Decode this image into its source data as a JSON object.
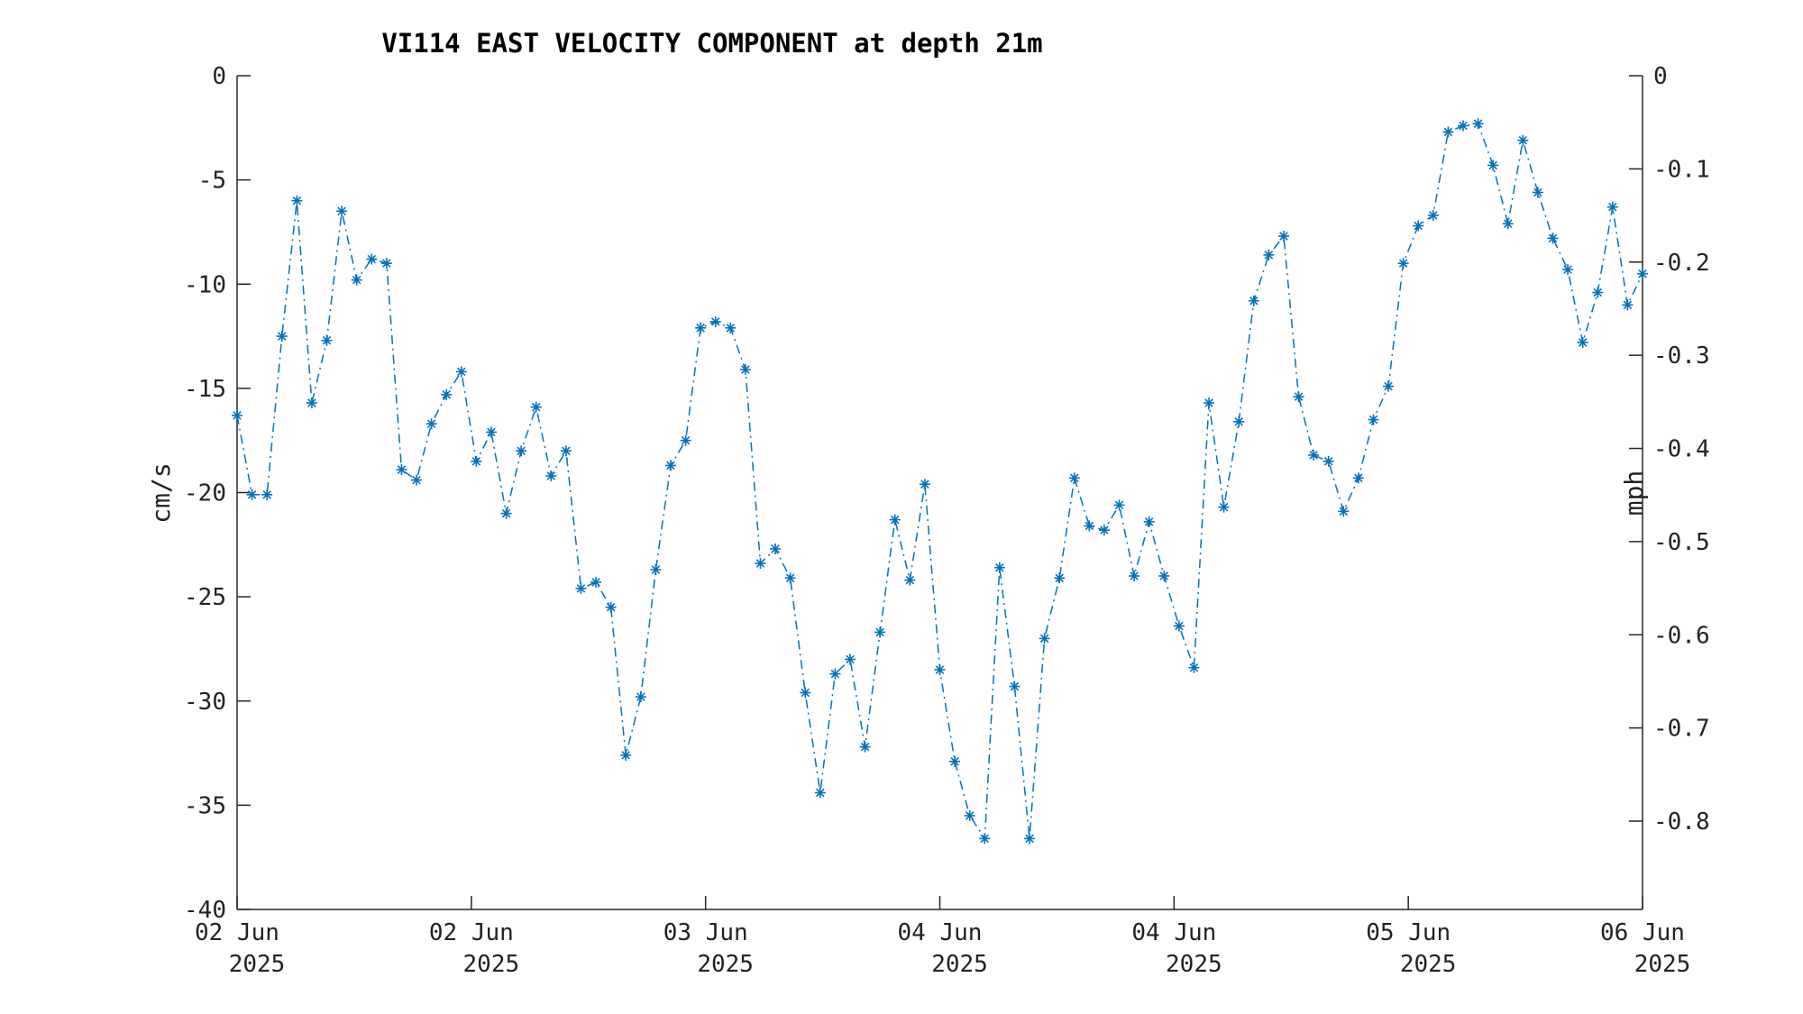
{
  "chart_data": {
    "type": "line",
    "title": "VI114 EAST VELOCITY COMPONENT at depth 21m",
    "ylabel": "cm/s",
    "y2label": "mph",
    "ylim": [
      -40,
      0
    ],
    "y2lim": [
      -0.894775,
      0
    ],
    "yticks": [
      "0",
      "-5",
      "-10",
      "-15",
      "-20",
      "-25",
      "-30",
      "-35",
      "-40"
    ],
    "y2ticks": [
      "0",
      "-0.1",
      "-0.2",
      "-0.3",
      "-0.4",
      "-0.5",
      "-0.6",
      "-0.7",
      "-0.8"
    ],
    "xticks": [
      {
        "line1": "02 Jun",
        "line2": "2025"
      },
      {
        "line1": "02 Jun",
        "line2": "2025"
      },
      {
        "line1": "03 Jun",
        "line2": "2025"
      },
      {
        "line1": "04 Jun",
        "line2": "2025"
      },
      {
        "line1": "04 Jun",
        "line2": "2025"
      },
      {
        "line1": "05 Jun",
        "line2": "2025"
      },
      {
        "line1": "06 Jun",
        "line2": "2025"
      }
    ],
    "grid": false,
    "color": "#0072BD",
    "series": [
      {
        "values": [
          -16.3,
          -20.1,
          -20.1,
          -12.5,
          -6.0,
          -15.7,
          -12.7,
          -6.5,
          -9.8,
          -8.8,
          -9.0,
          -18.9,
          -19.4,
          -16.7,
          -15.3,
          -14.2,
          -18.5,
          -17.1,
          -21.0,
          -18.0,
          -15.9,
          -19.2,
          -18.0,
          -24.6,
          -24.3,
          -25.5,
          -32.6,
          -29.8,
          -23.7,
          -18.7,
          -17.5,
          -12.1,
          -11.8,
          -12.1,
          -14.1,
          -23.4,
          -22.7,
          -24.1,
          -29.6,
          -34.4,
          -28.7,
          -28.0,
          -32.2,
          -26.7,
          -21.3,
          -24.2,
          -19.6,
          -28.5,
          -32.9,
          -35.5,
          -36.6,
          -23.6,
          -29.3,
          -36.6,
          -27.0,
          -24.1,
          -19.3,
          -21.6,
          -21.8,
          -20.6,
          -24.0,
          -21.4,
          -24.0,
          -26.4,
          -28.4,
          -15.7,
          -20.7,
          -16.6,
          -10.8,
          -8.6,
          -7.7,
          -15.4,
          -18.2,
          -18.5,
          -20.9,
          -19.3,
          -16.5,
          -14.9,
          -9.0,
          -7.2,
          -6.7,
          -2.7,
          -2.4,
          -2.3,
          -4.3,
          -7.1,
          -3.1,
          -5.6,
          -7.8,
          -9.3,
          -12.8,
          -10.4,
          -6.3,
          -11.0,
          -9.5
        ]
      }
    ]
  }
}
